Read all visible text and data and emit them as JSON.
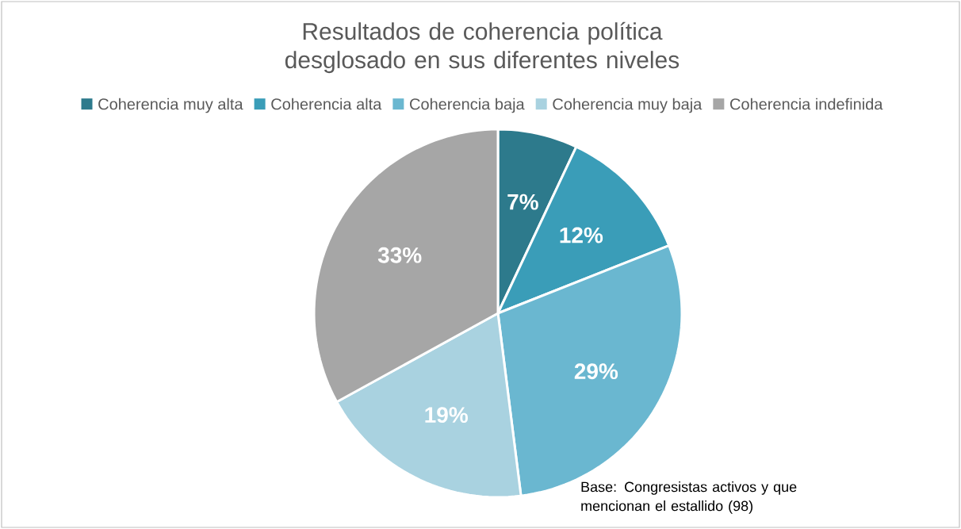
{
  "chart_data": {
    "type": "pie",
    "title": "Resultados de coherencia política desglosado en sus diferentes niveles",
    "categories": [
      "Coherencia muy alta",
      "Coherencia alta",
      "Coherencia baja",
      "Coherencia muy baja",
      "Coherencia indefinida"
    ],
    "values": [
      7,
      12,
      29,
      19,
      33
    ],
    "colors": [
      "#2d7a8c",
      "#3a9db8",
      "#6ab7d0",
      "#a9d2e0",
      "#a6a6a6"
    ],
    "value_labels": [
      "7%",
      "12%",
      "29%",
      "19%",
      "33%"
    ],
    "legend": "top",
    "annotations": [
      "Base: Congresistas activos y que mencionan el estallido (98)"
    ]
  }
}
